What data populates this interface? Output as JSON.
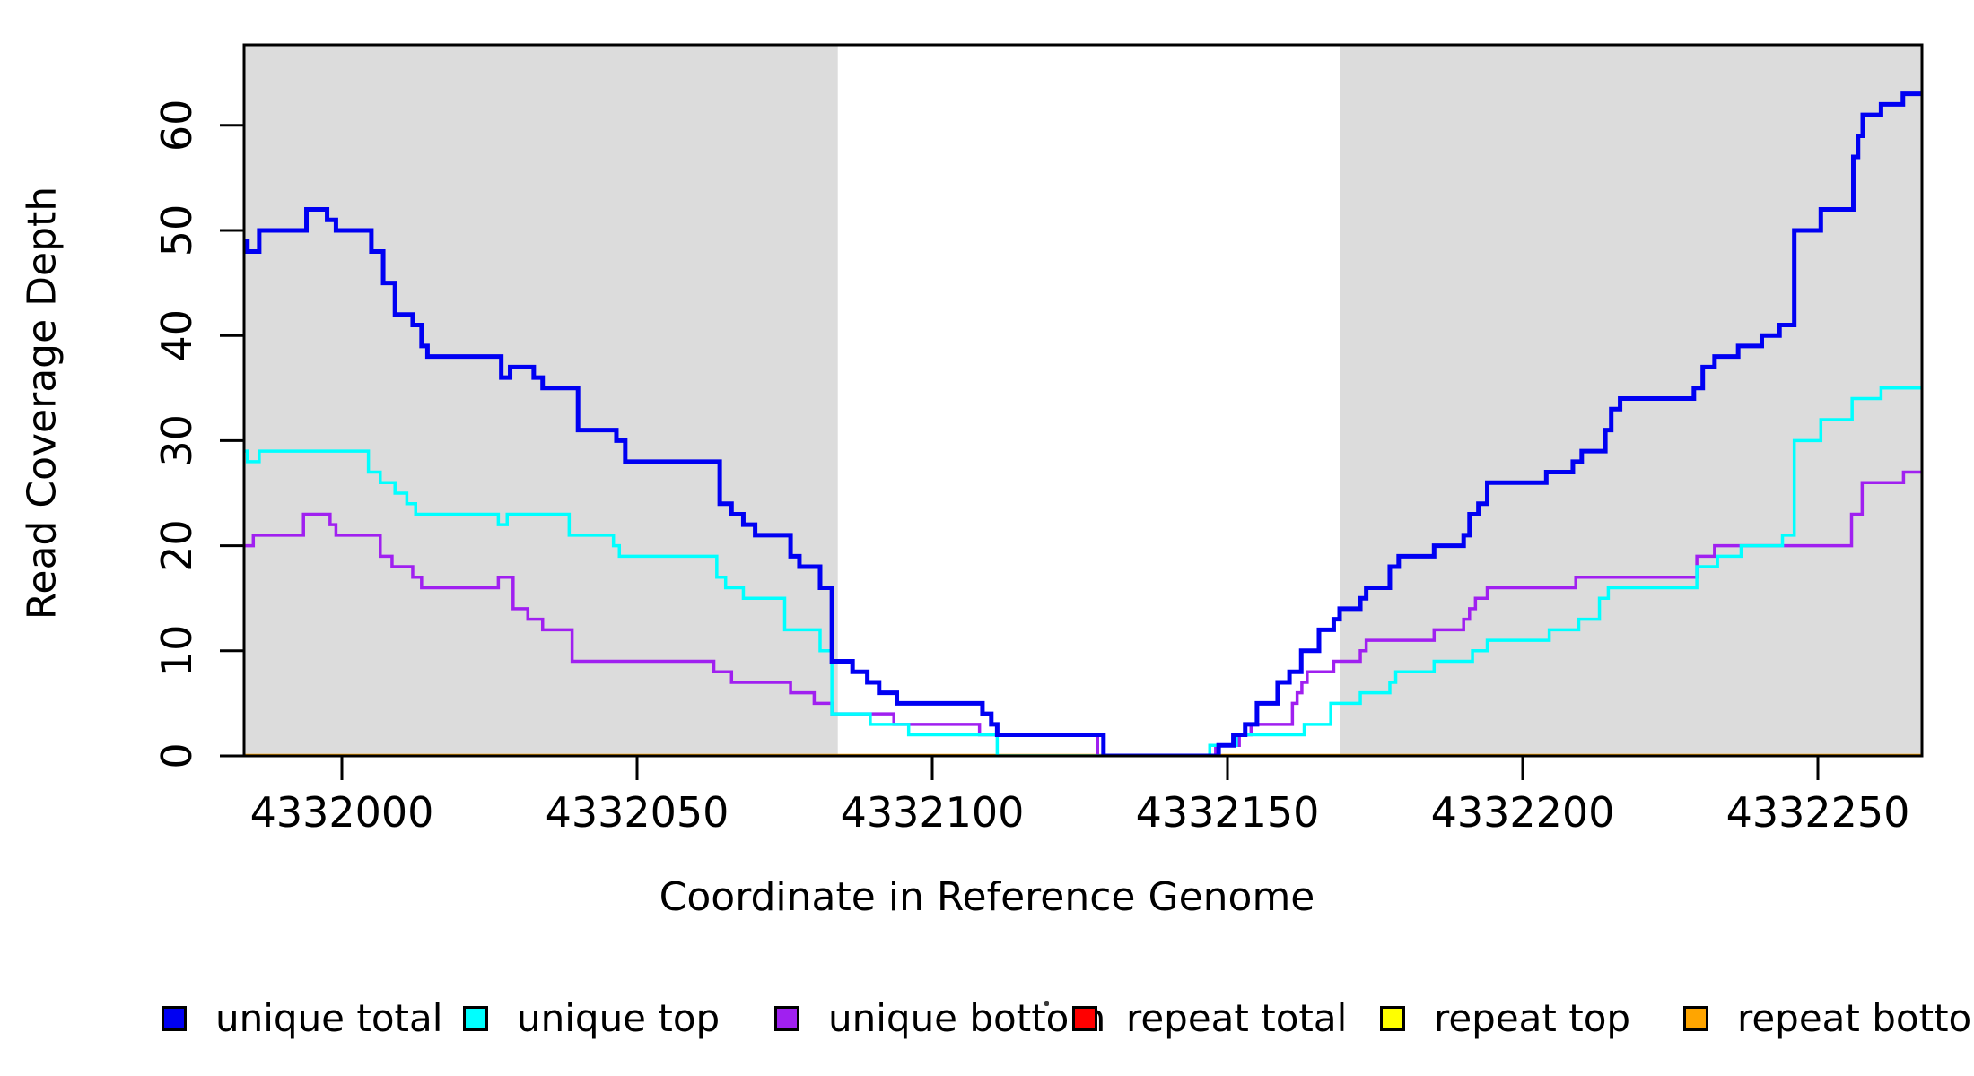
{
  "chart_data": {
    "type": "line",
    "subtype": "step-post",
    "title": "",
    "xlabel": "Coordinate in Reference Genome",
    "ylabel": "Read Coverage Depth",
    "xlim": [
      4331983,
      4332268
    ],
    "ylim": [
      0,
      67.7
    ],
    "x_ticks": [
      4332000,
      4332050,
      4332100,
      4332150,
      4332200,
      4332250
    ],
    "y_ticks": [
      0,
      10,
      20,
      30,
      40,
      50,
      60
    ],
    "grid": false,
    "legend_position": "bottom",
    "plot_bg": "#ffffff",
    "shaded_band_color": "#dcdcdc",
    "shaded_regions": [
      {
        "name": "left-unique-flank",
        "x0": 4331983,
        "x1": 4332084
      },
      {
        "name": "right-unique-flank",
        "x0": 4332169,
        "x1": 4332268
      }
    ],
    "series": [
      {
        "name": "repeat total",
        "color": "#ff0000",
        "width": 3.5,
        "points": [
          [
            4331983,
            0
          ]
        ]
      },
      {
        "name": "repeat top",
        "color": "#ffff00",
        "width": 3.5,
        "points": [
          [
            4331983,
            0
          ]
        ]
      },
      {
        "name": "repeat bottom",
        "color": "#ffa500",
        "width": 4.5,
        "points": [
          [
            4331983,
            0
          ]
        ]
      },
      {
        "name": "unique bottom",
        "color": "#a020f0",
        "width": 3.5,
        "points": [
          [
            4331983,
            20
          ],
          [
            4331985,
            21
          ],
          [
            4331993.5,
            23
          ],
          [
            4331998,
            22
          ],
          [
            4331999,
            21
          ],
          [
            4332006.5,
            19
          ],
          [
            4332008.5,
            18
          ],
          [
            4332012,
            17
          ],
          [
            4332013.5,
            16
          ],
          [
            4332026.5,
            17
          ],
          [
            4332029,
            14
          ],
          [
            4332031.5,
            13
          ],
          [
            4332034,
            12
          ],
          [
            4332039,
            9
          ],
          [
            4332063,
            8
          ],
          [
            4332066,
            7
          ],
          [
            4332076,
            6
          ],
          [
            4332080,
            5
          ],
          [
            4332083,
            4
          ],
          [
            4332093.5,
            3
          ],
          [
            4332108,
            2
          ],
          [
            4332128,
            0
          ],
          [
            4332148,
            1
          ],
          [
            4332152,
            2
          ],
          [
            4332154,
            3
          ],
          [
            4332161,
            5
          ],
          [
            4332161.8,
            6
          ],
          [
            4332162.6,
            7
          ],
          [
            4332163.5,
            8
          ],
          [
            4332168,
            9
          ],
          [
            4332172.5,
            10
          ],
          [
            4332173.5,
            11
          ],
          [
            4332185,
            12
          ],
          [
            4332190,
            13
          ],
          [
            4332191,
            14
          ],
          [
            4332192,
            15
          ],
          [
            4332194,
            16
          ],
          [
            4332209,
            17
          ],
          [
            4332229.5,
            19
          ],
          [
            4332232.5,
            20
          ],
          [
            4332255.7,
            23
          ],
          [
            4332257.5,
            26
          ],
          [
            4332264.5,
            27
          ]
        ]
      },
      {
        "name": "unique top",
        "color": "#00ffff",
        "width": 3.5,
        "points": [
          [
            4331983,
            29
          ],
          [
            4331984,
            28
          ],
          [
            4331986,
            29
          ],
          [
            4332004.5,
            27
          ],
          [
            4332006.5,
            26
          ],
          [
            4332009,
            25
          ],
          [
            4332011,
            24
          ],
          [
            4332012.5,
            23
          ],
          [
            4332026.5,
            22
          ],
          [
            4332028,
            23
          ],
          [
            4332038.5,
            21
          ],
          [
            4332046,
            20
          ],
          [
            4332047,
            19
          ],
          [
            4332063.5,
            17
          ],
          [
            4332065,
            16
          ],
          [
            4332068,
            15
          ],
          [
            4332075,
            12
          ],
          [
            4332081,
            10
          ],
          [
            4332083,
            4
          ],
          [
            4332089.5,
            3
          ],
          [
            4332096,
            2
          ],
          [
            4332111,
            0
          ],
          [
            4332147,
            1
          ],
          [
            4332151.5,
            2
          ],
          [
            4332163,
            3
          ],
          [
            4332167.5,
            5
          ],
          [
            4332172.5,
            6
          ],
          [
            4332177.5,
            7
          ],
          [
            4332178.5,
            8
          ],
          [
            4332185,
            9
          ],
          [
            4332191.5,
            10
          ],
          [
            4332194,
            11
          ],
          [
            4332204.5,
            12
          ],
          [
            4332209.5,
            13
          ],
          [
            4332213,
            15
          ],
          [
            4332214.5,
            16
          ],
          [
            4332229.5,
            18
          ],
          [
            4332233,
            19
          ],
          [
            4332237,
            20
          ],
          [
            4332244,
            21
          ],
          [
            4332246,
            30
          ],
          [
            4332250.5,
            32
          ],
          [
            4332255.8,
            34
          ],
          [
            4332260.7,
            35
          ]
        ]
      },
      {
        "name": "unique total",
        "color": "#0000f2",
        "width": 5,
        "points": [
          [
            4331983,
            49
          ],
          [
            4331984,
            48
          ],
          [
            4331986,
            50
          ],
          [
            4331994,
            52
          ],
          [
            4331997.5,
            51
          ],
          [
            4331999,
            50
          ],
          [
            4332005,
            48
          ],
          [
            4332007,
            45
          ],
          [
            4332009,
            42
          ],
          [
            4332012,
            41
          ],
          [
            4332013.5,
            39
          ],
          [
            4332014.5,
            38
          ],
          [
            4332027,
            36
          ],
          [
            4332028.5,
            37
          ],
          [
            4332032.5,
            36
          ],
          [
            4332034,
            35
          ],
          [
            4332040,
            31
          ],
          [
            4332046.5,
            30
          ],
          [
            4332048,
            28
          ],
          [
            4332064,
            24
          ],
          [
            4332066,
            23
          ],
          [
            4332068,
            22
          ],
          [
            4332070,
            21
          ],
          [
            4332076,
            19
          ],
          [
            4332077.5,
            18
          ],
          [
            4332081,
            16
          ],
          [
            4332083,
            9
          ],
          [
            4332086.5,
            8
          ],
          [
            4332089,
            7
          ],
          [
            4332091,
            6
          ],
          [
            4332094,
            5
          ],
          [
            4332108.5,
            4
          ],
          [
            4332110,
            3
          ],
          [
            4332111,
            2
          ],
          [
            4332129,
            0
          ],
          [
            4332148.5,
            1
          ],
          [
            4332151,
            2
          ],
          [
            4332153,
            3
          ],
          [
            4332155,
            5
          ],
          [
            4332158.5,
            7
          ],
          [
            4332160.5,
            8
          ],
          [
            4332162.5,
            10
          ],
          [
            4332165.5,
            12
          ],
          [
            4332168,
            13
          ],
          [
            4332169,
            14
          ],
          [
            4332172.5,
            15
          ],
          [
            4332173.5,
            16
          ],
          [
            4332177.5,
            18
          ],
          [
            4332179,
            19
          ],
          [
            4332185,
            20
          ],
          [
            4332190,
            21
          ],
          [
            4332191,
            23
          ],
          [
            4332192.5,
            24
          ],
          [
            4332194,
            26
          ],
          [
            4332204,
            27
          ],
          [
            4332208.5,
            28
          ],
          [
            4332210,
            29
          ],
          [
            4332214,
            31
          ],
          [
            4332215,
            33
          ],
          [
            4332216.5,
            34
          ],
          [
            4332229,
            35
          ],
          [
            4332230.5,
            37
          ],
          [
            4332232.5,
            38
          ],
          [
            4332236.5,
            39
          ],
          [
            4332240.5,
            40
          ],
          [
            4332243.5,
            41
          ],
          [
            4332246,
            50
          ],
          [
            4332250.5,
            52
          ],
          [
            4332256,
            57
          ],
          [
            4332256.8,
            59
          ],
          [
            4332257.6,
            61
          ],
          [
            4332260.7,
            62
          ],
          [
            4332264.4,
            63
          ]
        ]
      }
    ]
  },
  "legend": {
    "items": [
      {
        "label": "unique total",
        "color_hex": "#0000f2"
      },
      {
        "label": "unique top",
        "color_hex": "#00ffff"
      },
      {
        "label": "unique bottom",
        "color_hex": "#a020f0"
      },
      {
        "label": "repeat total",
        "color_hex": "#ff0000"
      },
      {
        "label": "repeat top",
        "color_hex": "#ffff00"
      },
      {
        "label": "repeat bottom",
        "color_hex": "#ffa500"
      }
    ]
  }
}
